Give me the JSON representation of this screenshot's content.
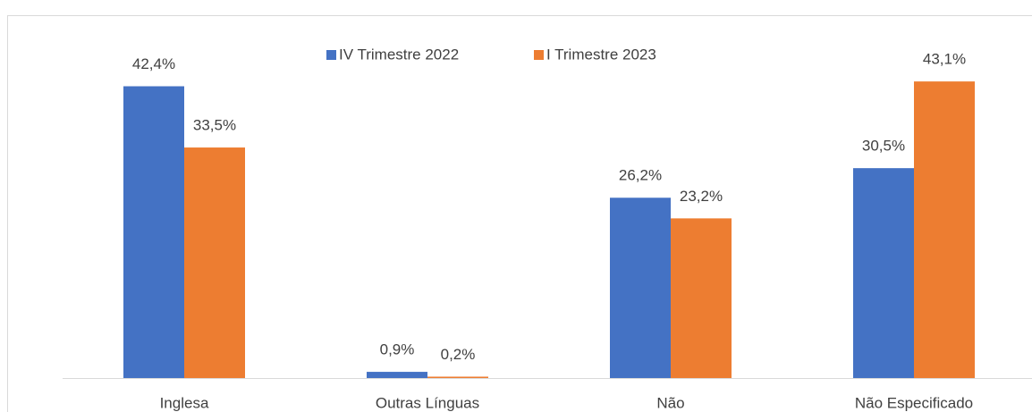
{
  "chart_data": {
    "type": "bar",
    "categories": [
      "Inglesa",
      "Outras Línguas",
      "Não",
      "Não Especificado"
    ],
    "series": [
      {
        "name": "IV Trimestre 2022",
        "color": "#4472c4",
        "values": [
          42.4,
          0.9,
          26.2,
          30.5
        ],
        "value_labels": [
          "42,4%",
          "0,9%",
          "26,2%",
          "30,5%"
        ]
      },
      {
        "name": "I Trimestre 2023",
        "color": "#ed7d31",
        "values": [
          33.5,
          0.2,
          23.2,
          43.1
        ],
        "value_labels": [
          "33,5%",
          "0,2%",
          "23,2%",
          "43,1%"
        ]
      }
    ],
    "ylim": [
      0,
      50
    ],
    "legend": "top"
  }
}
